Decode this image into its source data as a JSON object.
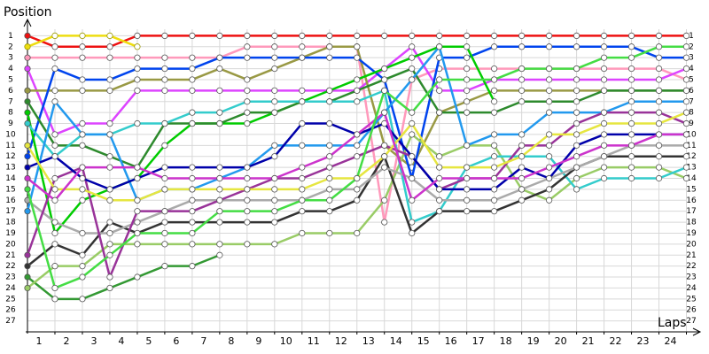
{
  "chart_data": {
    "type": "line",
    "y_label": "Position",
    "x_label": "Laps",
    "x": [
      0,
      1,
      2,
      3,
      4,
      5,
      6,
      7,
      8,
      9,
      10,
      11,
      12,
      13,
      14,
      15,
      16,
      17,
      18,
      19,
      20,
      21,
      22,
      23,
      24
    ],
    "xlim": [
      0,
      24.5
    ],
    "ylim": [
      0,
      28
    ],
    "y_reversed": true,
    "grid": true,
    "xticks": [
      1,
      2,
      3,
      4,
      5,
      6,
      7,
      8,
      9,
      10,
      11,
      12,
      13,
      14,
      15,
      16,
      17,
      18,
      19,
      20,
      21,
      22,
      23,
      24
    ],
    "yticks": [
      1,
      2,
      3,
      4,
      5,
      6,
      7,
      8,
      9,
      10,
      11,
      12,
      13,
      14,
      15,
      16,
      17,
      18,
      19,
      20,
      21,
      22,
      23,
      24,
      25,
      26,
      27
    ],
    "series": [
      {
        "color": "#ee1111",
        "values": [
          1,
          2,
          2,
          2,
          1,
          1,
          1,
          1,
          1,
          1,
          1,
          1,
          1,
          1,
          1,
          1,
          1,
          1,
          1,
          1,
          1,
          1,
          1,
          1,
          1
        ]
      },
      {
        "color": "#eedd11",
        "values": [
          2,
          1,
          1,
          1,
          2,
          null,
          null,
          null,
          null,
          null,
          null,
          null,
          null,
          null,
          null,
          null,
          null,
          null,
          null,
          null,
          null,
          null,
          null,
          null,
          null
        ]
      },
      {
        "color": "#ff99bb",
        "values": [
          3,
          3,
          3,
          3,
          3,
          3,
          3,
          3,
          2,
          2,
          2,
          2,
          2,
          18,
          5,
          4,
          4,
          4,
          4,
          4,
          4,
          4,
          4,
          4,
          5
        ]
      },
      {
        "color": "#dd44ff",
        "values": [
          4,
          10,
          9,
          9,
          6,
          6,
          6,
          6,
          6,
          6,
          6,
          6,
          6,
          4,
          2,
          6,
          6,
          5,
          5,
          5,
          5,
          5,
          5,
          5,
          4
        ]
      },
      {
        "color": "#999944",
        "values": [
          6,
          6,
          6,
          6,
          5,
          5,
          5,
          4,
          5,
          4,
          3,
          2,
          2,
          11,
          13,
          8,
          7,
          6,
          6,
          6,
          6,
          6,
          6,
          6,
          6
        ]
      },
      {
        "color": "#0044ee",
        "values": [
          12,
          4,
          5,
          5,
          4,
          4,
          4,
          3,
          3,
          3,
          3,
          3,
          3,
          5,
          14,
          3,
          3,
          2,
          2,
          2,
          2,
          2,
          2,
          3,
          3
        ]
      },
      {
        "color": "#00cc00",
        "values": [
          8,
          19,
          16,
          15,
          14,
          11,
          9,
          9,
          9,
          8,
          7,
          6,
          5,
          4,
          3,
          2,
          2,
          7,
          null,
          null,
          null,
          null,
          null,
          null,
          null
        ]
      },
      {
        "color": "#339933",
        "values": [
          23,
          25,
          25,
          24,
          23,
          22,
          22,
          21,
          null,
          null,
          null,
          null,
          null,
          null,
          null,
          null,
          null,
          null,
          null,
          null,
          null,
          null,
          null,
          null,
          null
        ]
      },
      {
        "color": "#2d8a2d",
        "values": [
          7,
          11,
          11,
          12,
          13,
          9,
          9,
          9,
          8,
          8,
          7,
          7,
          6,
          5,
          4,
          8,
          8,
          8,
          7,
          7,
          7,
          6,
          6,
          6,
          6
        ]
      },
      {
        "color": "#99cc66",
        "values": [
          24,
          22,
          22,
          20,
          20,
          20,
          20,
          20,
          20,
          20,
          19,
          19,
          19,
          16,
          10,
          12,
          11,
          11,
          15,
          16,
          14,
          13,
          13,
          13,
          14
        ]
      },
      {
        "color": "#33cccc",
        "values": [
          9,
          12,
          10,
          10,
          9,
          9,
          8,
          8,
          7,
          7,
          7,
          7,
          7,
          6,
          18,
          17,
          13,
          12,
          12,
          12,
          15,
          14,
          14,
          14,
          13
        ]
      },
      {
        "color": "#2299ee",
        "values": [
          17,
          7,
          10,
          10,
          16,
          15,
          15,
          14,
          13,
          11,
          11,
          11,
          11,
          8,
          5,
          2,
          11,
          10,
          10,
          8,
          8,
          8,
          7,
          7,
          7
        ]
      },
      {
        "color": "#333333",
        "values": [
          22,
          20,
          21,
          18,
          19,
          18,
          18,
          18,
          18,
          18,
          17,
          17,
          16,
          12,
          19,
          17,
          17,
          17,
          16,
          15,
          13,
          12,
          12,
          12,
          12
        ]
      },
      {
        "color": "#aaaaaa",
        "values": [
          16,
          18,
          19,
          19,
          18,
          17,
          16,
          16,
          16,
          16,
          16,
          15,
          15,
          13,
          14,
          16,
          16,
          16,
          15,
          14,
          13,
          12,
          11,
          11,
          11
        ]
      },
      {
        "color": "#993399",
        "values": [
          21,
          14,
          13,
          23,
          17,
          17,
          17,
          16,
          15,
          14,
          14,
          13,
          12,
          11,
          12,
          15,
          14,
          14,
          11,
          11,
          9,
          8,
          8,
          8,
          9
        ]
      },
      {
        "color": "#0000aa",
        "values": [
          13,
          12,
          14,
          15,
          14,
          13,
          13,
          13,
          13,
          12,
          9,
          9,
          10,
          9,
          12,
          15,
          15,
          15,
          13,
          14,
          11,
          10,
          10,
          10,
          10
        ]
      },
      {
        "color": "#e6e640",
        "values": [
          11,
          15,
          15,
          16,
          16,
          15,
          15,
          15,
          15,
          15,
          15,
          14,
          14,
          12,
          9,
          13,
          13,
          13,
          12,
          10,
          10,
          9,
          9,
          9,
          8
        ]
      },
      {
        "color": "#cc33cc",
        "values": [
          14,
          16,
          13,
          13,
          13,
          14,
          14,
          14,
          14,
          14,
          13,
          12,
          10,
          8,
          16,
          14,
          14,
          14,
          14,
          13,
          12,
          11,
          11,
          10,
          10
        ]
      },
      {
        "color": "#44dd44",
        "values": [
          15,
          24,
          23,
          21,
          19,
          19,
          19,
          17,
          17,
          17,
          16,
          16,
          14,
          6,
          8,
          5,
          5,
          5,
          4,
          4,
          4,
          3,
          3,
          2,
          2
        ]
      }
    ]
  }
}
